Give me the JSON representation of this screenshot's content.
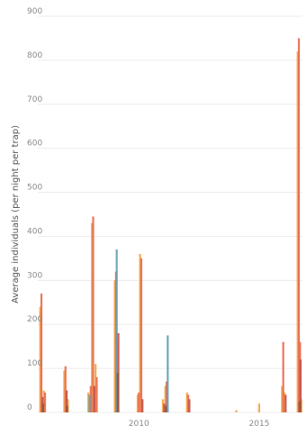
{
  "chart_data": {
    "type": "bar",
    "title": "",
    "xlabel": "",
    "ylabel": "Average individuals (per night per trap)",
    "ylim": [
      0,
      900
    ],
    "yticks": [
      0,
      100,
      200,
      300,
      400,
      500,
      600,
      700,
      800,
      900
    ],
    "xlim": [
      2005.8,
      2016.8
    ],
    "xticks": [
      2010,
      2015
    ],
    "grid": true,
    "legend": "none",
    "colors": [
      "#f4a340",
      "#e8694a",
      "#c2504b",
      "#5f9fb4",
      "#8a5a3c"
    ],
    "series": [
      {
        "values": [
          {
            "x": 2005.9,
            "y": 240
          },
          {
            "x": 2006.05,
            "y": 50
          },
          {
            "x": 2006.9,
            "y": 95
          },
          {
            "x": 2007.05,
            "y": 30
          },
          {
            "x": 2007.9,
            "y": 45
          },
          {
            "x": 2008.05,
            "y": 430
          },
          {
            "x": 2008.2,
            "y": 110
          },
          {
            "x": 2009.0,
            "y": 300
          },
          {
            "x": 2009.1,
            "y": 165
          },
          {
            "x": 2009.95,
            "y": 40
          },
          {
            "x": 2010.05,
            "y": 360
          },
          {
            "x": 2011.0,
            "y": 30
          },
          {
            "x": 2011.1,
            "y": 60
          },
          {
            "x": 2012.0,
            "y": 45
          },
          {
            "x": 2014.05,
            "y": 5
          },
          {
            "x": 2015.0,
            "y": 20
          },
          {
            "x": 2015.95,
            "y": 60
          },
          {
            "x": 2016.05,
            "y": 45
          },
          {
            "x": 2016.6,
            "y": 820
          },
          {
            "x": 2016.75,
            "y": 30
          }
        ]
      },
      {
        "values": [
          {
            "x": 2005.95,
            "y": 270
          },
          {
            "x": 2006.1,
            "y": 45
          },
          {
            "x": 2006.95,
            "y": 105
          },
          {
            "x": 2008.0,
            "y": 60
          },
          {
            "x": 2008.1,
            "y": 445
          },
          {
            "x": 2008.25,
            "y": 80
          },
          {
            "x": 2009.05,
            "y": 320
          },
          {
            "x": 2010.0,
            "y": 45
          },
          {
            "x": 2010.1,
            "y": 350
          },
          {
            "x": 2011.15,
            "y": 70
          },
          {
            "x": 2012.05,
            "y": 40
          },
          {
            "x": 2016.0,
            "y": 160
          },
          {
            "x": 2016.65,
            "y": 850
          },
          {
            "x": 2016.7,
            "y": 160
          }
        ]
      },
      {
        "values": [
          {
            "x": 2006.0,
            "y": 35
          },
          {
            "x": 2007.0,
            "y": 50
          },
          {
            "x": 2008.15,
            "y": 60
          },
          {
            "x": 2009.15,
            "y": 180
          },
          {
            "x": 2010.15,
            "y": 30
          },
          {
            "x": 2011.05,
            "y": 20
          },
          {
            "x": 2012.1,
            "y": 30
          },
          {
            "x": 2016.1,
            "y": 40
          },
          {
            "x": 2016.72,
            "y": 120
          }
        ]
      },
      {
        "values": [
          {
            "x": 2009.08,
            "y": 370
          },
          {
            "x": 2011.2,
            "y": 175
          },
          {
            "x": 2007.95,
            "y": 40
          }
        ]
      },
      {
        "values": [
          {
            "x": 2006.02,
            "y": 20
          },
          {
            "x": 2007.02,
            "y": 15
          },
          {
            "x": 2009.12,
            "y": 90
          },
          {
            "x": 2011.12,
            "y": 15
          },
          {
            "x": 2016.68,
            "y": 25
          }
        ]
      }
    ]
  }
}
